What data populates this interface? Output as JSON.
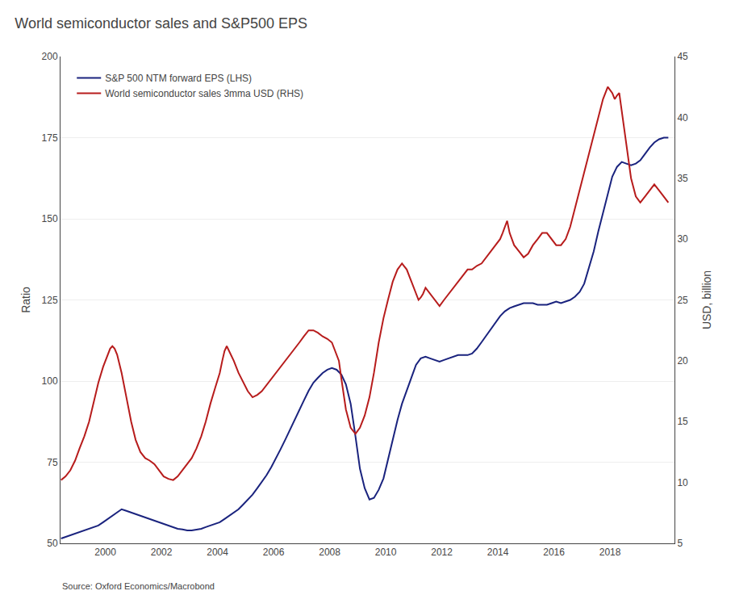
{
  "chart_data": {
    "type": "line",
    "title": "World semiconductor sales and S&P500 EPS",
    "ylabel": "Ratio",
    "y2label": "USD, billion",
    "source": "Source: Oxford Economics/Macrobond",
    "xlim": [
      1998.4,
      2020.3
    ],
    "xticks": [
      2000,
      2002,
      2004,
      2006,
      2008,
      2010,
      2012,
      2014,
      2016,
      2018
    ],
    "ylim": [
      50,
      200
    ],
    "yticks": [
      50,
      75,
      100,
      125,
      150,
      175,
      200
    ],
    "y2lim": [
      5,
      45
    ],
    "y2ticks": [
      5,
      10,
      15,
      20,
      25,
      30,
      35,
      40,
      45
    ],
    "grid": true,
    "legend": "upper left",
    "series": [
      {
        "name": "S&P 500 NTM forward EPS (LHS)",
        "color": "#1a237e",
        "axis": "y",
        "x": [
          1998.42,
          1998.58,
          1998.75,
          1998.92,
          1999.08,
          1999.25,
          1999.42,
          1999.58,
          1999.75,
          1999.92,
          2000.08,
          2000.25,
          2000.42,
          2000.58,
          2000.75,
          2000.92,
          2001.08,
          2001.25,
          2001.42,
          2001.58,
          2001.75,
          2001.92,
          2002.08,
          2002.25,
          2002.42,
          2002.58,
          2002.75,
          2002.92,
          2003.08,
          2003.25,
          2003.42,
          2003.58,
          2003.75,
          2003.92,
          2004.08,
          2004.25,
          2004.42,
          2004.58,
          2004.75,
          2004.92,
          2005.08,
          2005.25,
          2005.42,
          2005.58,
          2005.75,
          2005.92,
          2006.08,
          2006.25,
          2006.42,
          2006.58,
          2006.75,
          2006.92,
          2007.08,
          2007.25,
          2007.42,
          2007.58,
          2007.75,
          2007.92,
          2008.08,
          2008.25,
          2008.42,
          2008.58,
          2008.75,
          2008.92,
          2009.08,
          2009.25,
          2009.42,
          2009.58,
          2009.75,
          2009.92,
          2010.08,
          2010.25,
          2010.42,
          2010.58,
          2010.75,
          2010.92,
          2011.08,
          2011.25,
          2011.42,
          2011.58,
          2011.75,
          2011.92,
          2012.08,
          2012.25,
          2012.42,
          2012.58,
          2012.75,
          2012.92,
          2013.08,
          2013.25,
          2013.42,
          2013.58,
          2013.75,
          2013.92,
          2014.08,
          2014.25,
          2014.42,
          2014.58,
          2014.75,
          2014.92,
          2015.08,
          2015.25,
          2015.42,
          2015.58,
          2015.75,
          2015.92,
          2016.08,
          2016.25,
          2016.42,
          2016.58,
          2016.75,
          2016.92,
          2017.08,
          2017.25,
          2017.42,
          2017.58,
          2017.75,
          2017.92,
          2018.08,
          2018.25,
          2018.42,
          2018.58,
          2018.75,
          2018.92,
          2019.08,
          2019.25,
          2019.42,
          2019.58,
          2019.75,
          2019.92,
          2020.08
        ],
        "values": [
          51.5,
          52.0,
          52.5,
          53.0,
          53.5,
          54.0,
          54.5,
          55.0,
          55.5,
          56.5,
          57.5,
          58.5,
          59.5,
          60.5,
          60.0,
          59.5,
          59.0,
          58.5,
          58.0,
          57.5,
          57.0,
          56.5,
          56.0,
          55.5,
          55.0,
          54.5,
          54.3,
          54.0,
          54.0,
          54.2,
          54.5,
          55.0,
          55.5,
          56.0,
          56.5,
          57.5,
          58.5,
          59.5,
          60.5,
          62.0,
          63.5,
          65.0,
          67.0,
          69.0,
          71.0,
          73.5,
          76.0,
          79.0,
          82.0,
          85.0,
          88.0,
          91.0,
          94.0,
          97.0,
          99.5,
          101.0,
          102.5,
          103.5,
          104.0,
          103.5,
          102.0,
          99.0,
          93.0,
          83.0,
          73.0,
          67.0,
          63.5,
          64.0,
          66.5,
          70.0,
          76.0,
          82.0,
          88.0,
          93.0,
          97.0,
          101.0,
          105.0,
          107.0,
          107.5,
          107.0,
          106.5,
          106.0,
          106.5,
          107.0,
          107.5,
          108.0,
          108.0,
          108.0,
          108.5,
          110.0,
          112.0,
          114.0,
          116.0,
          118.0,
          120.0,
          121.5,
          122.5,
          123.0,
          123.5,
          124.0,
          124.0,
          124.0,
          123.5,
          123.5,
          123.5,
          124.0,
          124.5,
          124.0,
          124.5,
          125.0,
          126.0,
          127.5,
          130.0,
          135.0,
          140.0,
          146.0,
          152.0,
          158.0,
          163.0,
          166.0,
          167.5,
          167.0,
          166.5,
          167.0,
          168.0,
          170.0,
          172.0,
          173.5,
          174.5,
          175.0,
          175.0
        ]
      },
      {
        "name": "World semiconductor sales 3mma USD (RHS)",
        "color": "#b71c1c",
        "axis": "y2",
        "x": [
          1998.42,
          1998.58,
          1998.75,
          1998.92,
          1999.08,
          1999.25,
          1999.42,
          1999.58,
          1999.75,
          1999.92,
          2000.08,
          2000.17,
          2000.25,
          2000.33,
          2000.42,
          2000.58,
          2000.75,
          2000.92,
          2001.08,
          2001.25,
          2001.42,
          2001.58,
          2001.75,
          2001.92,
          2002.08,
          2002.25,
          2002.42,
          2002.58,
          2002.75,
          2002.92,
          2003.08,
          2003.25,
          2003.42,
          2003.58,
          2003.75,
          2003.92,
          2004.08,
          2004.17,
          2004.25,
          2004.33,
          2004.42,
          2004.58,
          2004.75,
          2004.92,
          2005.08,
          2005.25,
          2005.42,
          2005.58,
          2005.75,
          2005.92,
          2006.08,
          2006.25,
          2006.42,
          2006.58,
          2006.75,
          2006.92,
          2007.08,
          2007.25,
          2007.42,
          2007.58,
          2007.75,
          2007.92,
          2008.08,
          2008.17,
          2008.25,
          2008.33,
          2008.42,
          2008.58,
          2008.75,
          2008.92,
          2009.08,
          2009.25,
          2009.42,
          2009.58,
          2009.75,
          2009.92,
          2010.08,
          2010.25,
          2010.42,
          2010.58,
          2010.75,
          2010.92,
          2011.08,
          2011.17,
          2011.25,
          2011.33,
          2011.42,
          2011.58,
          2011.75,
          2011.92,
          2012.08,
          2012.25,
          2012.42,
          2012.58,
          2012.75,
          2012.92,
          2013.08,
          2013.25,
          2013.42,
          2013.58,
          2013.75,
          2013.92,
          2014.08,
          2014.17,
          2014.25,
          2014.33,
          2014.42,
          2014.58,
          2014.75,
          2014.92,
          2015.08,
          2015.25,
          2015.42,
          2015.58,
          2015.75,
          2015.92,
          2016.08,
          2016.25,
          2016.42,
          2016.58,
          2016.75,
          2016.92,
          2017.08,
          2017.25,
          2017.42,
          2017.58,
          2017.75,
          2017.92,
          2018.08,
          2018.17,
          2018.25,
          2018.33,
          2018.42,
          2018.58,
          2018.75,
          2018.92,
          2019.08,
          2019.25,
          2019.42,
          2019.58,
          2019.75,
          2019.92,
          2020.08
        ],
        "values": [
          10.2,
          10.5,
          11.0,
          11.8,
          12.8,
          13.8,
          15.0,
          16.5,
          18.2,
          19.5,
          20.5,
          21.0,
          21.2,
          21.0,
          20.5,
          19.0,
          17.0,
          15.0,
          13.5,
          12.5,
          12.0,
          11.8,
          11.5,
          11.0,
          10.5,
          10.3,
          10.2,
          10.5,
          11.0,
          11.5,
          12.0,
          12.8,
          13.8,
          15.0,
          16.5,
          17.8,
          19.0,
          20.0,
          20.8,
          21.2,
          20.8,
          20.0,
          19.0,
          18.2,
          17.5,
          17.0,
          17.2,
          17.5,
          18.0,
          18.5,
          19.0,
          19.5,
          20.0,
          20.5,
          21.0,
          21.5,
          22.0,
          22.5,
          22.5,
          22.3,
          22.0,
          21.8,
          21.5,
          21.0,
          20.5,
          20.0,
          18.5,
          16.0,
          14.5,
          14.0,
          14.5,
          15.5,
          17.0,
          19.0,
          21.5,
          23.5,
          25.0,
          26.5,
          27.5,
          28.0,
          27.5,
          26.5,
          25.5,
          25.0,
          25.2,
          25.5,
          26.0,
          25.5,
          25.0,
          24.5,
          25.0,
          25.5,
          26.0,
          26.5,
          27.0,
          27.5,
          27.5,
          27.8,
          28.0,
          28.5,
          29.0,
          29.5,
          30.0,
          30.5,
          31.0,
          31.5,
          30.5,
          29.5,
          29.0,
          28.5,
          28.8,
          29.5,
          30.0,
          30.5,
          30.5,
          30.0,
          29.5,
          29.5,
          30.0,
          31.0,
          32.5,
          34.0,
          35.5,
          37.0,
          38.5,
          40.0,
          41.5,
          42.5,
          42.0,
          41.5,
          41.8,
          42.0,
          40.5,
          37.5,
          35.0,
          33.5,
          33.0,
          33.5,
          34.0,
          34.5,
          34.0,
          33.5,
          33.0
        ]
      }
    ]
  }
}
